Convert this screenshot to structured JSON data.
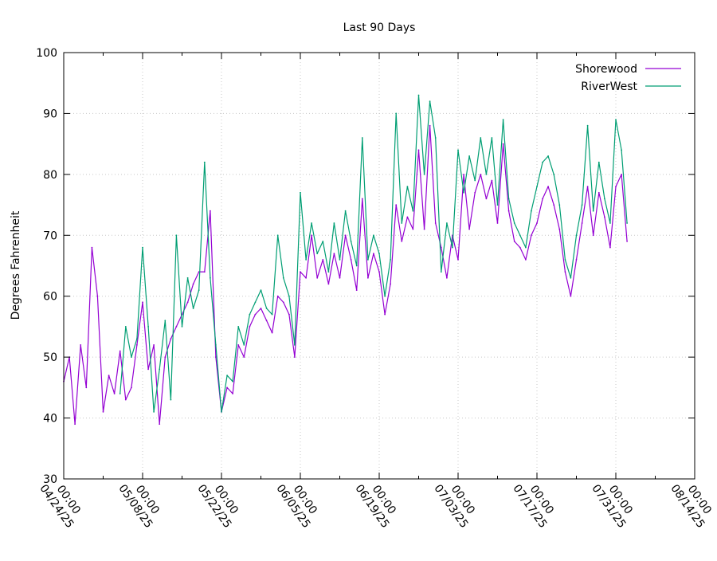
{
  "chart_data": {
    "type": "line",
    "title": "Last 90 Days",
    "xlabel": "",
    "ylabel": "Degrees Fahrenheit",
    "ylim": [
      30,
      100
    ],
    "xlim": [
      "2025-04-24",
      "2025-08-14"
    ],
    "grid": true,
    "legend_position": "top-right",
    "yticks": [
      30,
      40,
      50,
      60,
      70,
      80,
      90,
      100
    ],
    "xticks": [
      {
        "time": "00:00",
        "date": "04/24/25"
      },
      {
        "time": "00:00",
        "date": "05/08/25"
      },
      {
        "time": "00:00",
        "date": "05/22/25"
      },
      {
        "time": "00:00",
        "date": "06/05/25"
      },
      {
        "time": "00:00",
        "date": "06/19/25"
      },
      {
        "time": "00:00",
        "date": "07/03/25"
      },
      {
        "time": "00:00",
        "date": "07/17/25"
      },
      {
        "time": "00:00",
        "date": "07/31/25"
      },
      {
        "time": "00:00",
        "date": "08/14/25"
      }
    ],
    "series": [
      {
        "name": "Shorewood",
        "color": "#9400d3",
        "x": [
          "2025-04-24",
          "2025-04-25",
          "2025-04-26",
          "2025-04-27",
          "2025-04-28",
          "2025-04-29",
          "2025-04-30",
          "2025-05-01",
          "2025-05-02",
          "2025-05-03",
          "2025-05-04",
          "2025-05-05",
          "2025-05-06",
          "2025-05-07",
          "2025-05-08",
          "2025-05-09",
          "2025-05-10",
          "2025-05-11",
          "2025-05-12",
          "2025-05-13",
          "2025-05-14",
          "2025-05-15",
          "2025-05-16",
          "2025-05-17",
          "2025-05-18",
          "2025-05-19",
          "2025-05-20",
          "2025-05-21",
          "2025-05-22",
          "2025-05-23",
          "2025-05-24",
          "2025-05-25",
          "2025-05-26",
          "2025-05-27",
          "2025-05-28",
          "2025-05-29",
          "2025-05-30",
          "2025-05-31",
          "2025-06-01",
          "2025-06-02",
          "2025-06-03",
          "2025-06-04",
          "2025-06-05",
          "2025-06-06",
          "2025-06-07",
          "2025-06-08",
          "2025-06-09",
          "2025-06-10",
          "2025-06-11",
          "2025-06-12",
          "2025-06-13",
          "2025-06-14",
          "2025-06-15",
          "2025-06-16",
          "2025-06-17",
          "2025-06-18",
          "2025-06-19",
          "2025-06-20",
          "2025-06-21",
          "2025-06-22",
          "2025-06-23",
          "2025-06-24",
          "2025-06-25",
          "2025-06-26",
          "2025-06-27",
          "2025-06-28",
          "2025-06-29",
          "2025-06-30",
          "2025-07-01",
          "2025-07-02",
          "2025-07-03",
          "2025-07-04",
          "2025-07-05",
          "2025-07-06",
          "2025-07-07",
          "2025-07-08",
          "2025-07-09",
          "2025-07-10",
          "2025-07-11",
          "2025-07-12",
          "2025-07-13",
          "2025-07-14",
          "2025-07-15",
          "2025-07-16",
          "2025-07-17",
          "2025-07-18",
          "2025-07-19",
          "2025-07-20",
          "2025-07-21",
          "2025-07-22",
          "2025-07-23",
          "2025-07-24",
          "2025-07-25",
          "2025-07-26",
          "2025-07-27",
          "2025-07-28",
          "2025-07-29",
          "2025-07-30",
          "2025-07-31",
          "2025-08-01",
          "2025-08-02"
        ],
        "values": [
          46,
          50,
          39,
          52,
          45,
          68,
          60,
          41,
          47,
          44,
          51,
          43,
          45,
          52,
          59,
          48,
          52,
          39,
          50,
          53,
          55,
          57,
          59,
          62,
          64,
          64,
          74,
          50,
          41,
          45,
          44,
          52,
          50,
          55,
          57,
          58,
          56,
          54,
          60,
          59,
          57,
          50,
          64,
          63,
          70,
          63,
          66,
          62,
          67,
          63,
          70,
          66,
          61,
          76,
          63,
          67,
          64,
          57,
          62,
          75,
          69,
          73,
          71,
          84,
          71,
          88,
          72,
          68,
          63,
          70,
          66,
          80,
          71,
          77,
          80,
          76,
          79,
          72,
          85,
          74,
          69,
          68,
          66,
          70,
          72,
          76,
          78,
          75,
          71,
          64,
          60,
          66,
          72,
          78,
          70,
          77,
          73,
          68,
          78,
          80,
          69
        ]
      },
      {
        "name": "RiverWest",
        "color": "#009e73",
        "x": [
          "2025-04-24",
          "2025-04-25",
          "2025-04-26",
          "2025-04-27",
          "2025-04-28",
          "2025-04-29",
          "2025-04-30",
          "2025-05-01",
          "2025-05-02",
          "2025-05-03",
          "2025-05-04",
          "2025-05-05",
          "2025-05-06",
          "2025-05-07",
          "2025-05-08",
          "2025-05-09",
          "2025-05-10",
          "2025-05-11",
          "2025-05-12",
          "2025-05-13",
          "2025-05-14",
          "2025-05-15",
          "2025-05-16",
          "2025-05-17",
          "2025-05-18",
          "2025-05-19",
          "2025-05-20",
          "2025-05-21",
          "2025-05-22",
          "2025-05-23",
          "2025-05-24",
          "2025-05-25",
          "2025-05-26",
          "2025-05-27",
          "2025-05-28",
          "2025-05-29",
          "2025-05-30",
          "2025-05-31",
          "2025-06-01",
          "2025-06-02",
          "2025-06-03",
          "2025-06-04",
          "2025-06-05",
          "2025-06-06",
          "2025-06-07",
          "2025-06-08",
          "2025-06-09",
          "2025-06-10",
          "2025-06-11",
          "2025-06-12",
          "2025-06-13",
          "2025-06-14",
          "2025-06-15",
          "2025-06-16",
          "2025-06-17",
          "2025-06-18",
          "2025-06-19",
          "2025-06-20",
          "2025-06-21",
          "2025-06-22",
          "2025-06-23",
          "2025-06-24",
          "2025-06-25",
          "2025-06-26",
          "2025-06-27",
          "2025-06-28",
          "2025-06-29",
          "2025-06-30",
          "2025-07-01",
          "2025-07-02",
          "2025-07-03",
          "2025-07-04",
          "2025-07-05",
          "2025-07-06",
          "2025-07-07",
          "2025-07-08",
          "2025-07-09",
          "2025-07-10",
          "2025-07-11",
          "2025-07-12",
          "2025-07-13",
          "2025-07-14",
          "2025-07-15",
          "2025-07-16",
          "2025-07-17",
          "2025-07-18",
          "2025-07-19",
          "2025-07-20",
          "2025-07-21",
          "2025-07-22",
          "2025-07-23",
          "2025-07-24",
          "2025-07-25",
          "2025-07-26",
          "2025-07-27",
          "2025-07-28",
          "2025-07-29",
          "2025-07-30",
          "2025-07-31",
          "2025-08-01",
          "2025-08-02"
        ],
        "values": [
          null,
          null,
          null,
          null,
          null,
          null,
          null,
          null,
          null,
          null,
          44,
          55,
          50,
          53,
          68,
          55,
          41,
          48,
          56,
          43,
          70,
          55,
          63,
          58,
          61,
          82,
          63,
          52,
          41,
          47,
          46,
          55,
          52,
          57,
          59,
          61,
          58,
          57,
          70,
          63,
          60,
          52,
          77,
          66,
          72,
          67,
          69,
          64,
          72,
          66,
          74,
          69,
          65,
          86,
          66,
          70,
          67,
          60,
          66,
          90,
          72,
          78,
          74,
          93,
          80,
          92,
          86,
          64,
          72,
          68,
          84,
          77,
          83,
          79,
          86,
          80,
          86,
          75,
          89,
          76,
          72,
          70,
          68,
          74,
          78,
          82,
          83,
          80,
          75,
          66,
          63,
          70,
          75,
          88,
          74,
          82,
          76,
          72,
          89,
          84,
          72
        ]
      }
    ]
  }
}
